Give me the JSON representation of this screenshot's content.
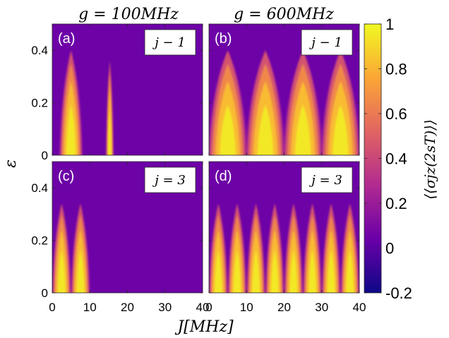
{
  "chart_data": {
    "type": "heatmap",
    "columns": [
      {
        "title": "g = 100MHz",
        "g_MHz": 100
      },
      {
        "title": "g = 600MHz",
        "g_MHz": 600
      }
    ],
    "panels": [
      {
        "id": "(a)",
        "label": "(a)",
        "annotation": "j − 1",
        "g_MHz": 100,
        "j": 1,
        "lobes": [
          {
            "J_center": 5,
            "half_width_base": 2.8,
            "eps_apex": 0.4
          },
          {
            "J_center": 15.3,
            "half_width_base": 0.9,
            "eps_apex": 0.36
          }
        ]
      },
      {
        "id": "(b)",
        "label": "(b)",
        "annotation": "j − 1",
        "g_MHz": 600,
        "j": 1,
        "lobes": [
          {
            "J_center": 5,
            "half_width_base": 4.8,
            "eps_apex": 0.4
          },
          {
            "J_center": 15,
            "half_width_base": 4.8,
            "eps_apex": 0.4
          },
          {
            "J_center": 25,
            "half_width_base": 4.8,
            "eps_apex": 0.4
          },
          {
            "J_center": 35,
            "half_width_base": 4.8,
            "eps_apex": 0.4
          }
        ]
      },
      {
        "id": "(c)",
        "label": "(c)",
        "annotation": "j = 3",
        "g_MHz": 100,
        "j": 3,
        "lobes": [
          {
            "J_center": 2.5,
            "half_width_base": 2.3,
            "eps_apex": 0.34
          },
          {
            "J_center": 7.5,
            "half_width_base": 2.3,
            "eps_apex": 0.34
          }
        ]
      },
      {
        "id": "(d)",
        "label": "(d)",
        "annotation": "j = 3",
        "g_MHz": 600,
        "j": 3,
        "lobes": [
          {
            "J_center": 2.5,
            "half_width_base": 2.3,
            "eps_apex": 0.34
          },
          {
            "J_center": 7.5,
            "half_width_base": 2.3,
            "eps_apex": 0.34
          },
          {
            "J_center": 12.5,
            "half_width_base": 2.3,
            "eps_apex": 0.34
          },
          {
            "J_center": 17.5,
            "half_width_base": 2.3,
            "eps_apex": 0.34
          },
          {
            "J_center": 22.5,
            "half_width_base": 2.3,
            "eps_apex": 0.34
          },
          {
            "J_center": 27.5,
            "half_width_base": 2.3,
            "eps_apex": 0.34
          },
          {
            "J_center": 32.5,
            "half_width_base": 2.3,
            "eps_apex": 0.34
          },
          {
            "J_center": 37.5,
            "half_width_base": 2.3,
            "eps_apex": 0.34
          }
        ]
      }
    ],
    "x_axis": {
      "label": "J[MHz]",
      "range": [
        0,
        40
      ],
      "ticks": [
        0,
        10,
        20,
        30,
        40
      ]
    },
    "y_axis": {
      "label": "ε",
      "range": [
        0,
        0.5
      ],
      "ticks": [
        0,
        0.2,
        0.4
      ],
      "tick_labels": [
        "0",
        "0.2",
        "0.4"
      ]
    },
    "colorbar": {
      "label": "⟨⟨σjz(2sT)⟩⟩",
      "range": [
        -0.2,
        1
      ],
      "ticks": [
        -0.2,
        0,
        0.2,
        0.4,
        0.6,
        0.8,
        1
      ],
      "tick_labels": [
        "-0.2",
        "0",
        "0.2",
        "0.4",
        "0.6",
        "0.8",
        "1"
      ],
      "colormap": "plasma",
      "colors": [
        "#0d0887",
        "#6a00a8",
        "#b12a90",
        "#e16462",
        "#fca636",
        "#f0f921"
      ]
    },
    "background_value": 0.05,
    "grid": false
  }
}
